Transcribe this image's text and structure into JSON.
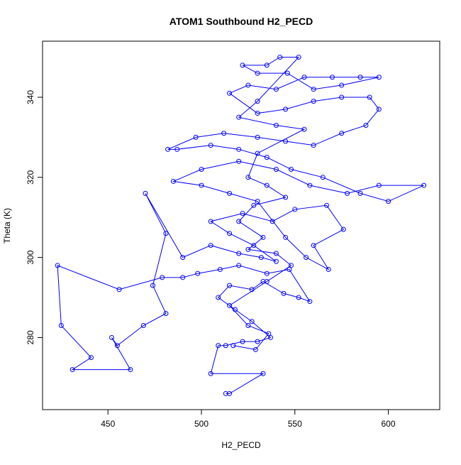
{
  "chart_data": {
    "type": "line",
    "markers": true,
    "title": "ATOM1 Southbound H2_PECD",
    "x_label": "H2_PECD",
    "y_label": "Theta (K)",
    "color": "#0000ff",
    "grid": false,
    "xlim": [
      415,
      627.5
    ],
    "ylim": [
      262,
      354
    ],
    "xticks": [
      450,
      500,
      550,
      600
    ],
    "yticks": [
      280,
      300,
      320,
      340
    ],
    "x": [
      513,
      515,
      533,
      505,
      509,
      513,
      522,
      530,
      537,
      527,
      518,
      509,
      515,
      527,
      533,
      544,
      552,
      558,
      547,
      535,
      520,
      510,
      498,
      490,
      479,
      456,
      423,
      425,
      441,
      431,
      462,
      452,
      455,
      469,
      481,
      474,
      481,
      470,
      490,
      505,
      520,
      532,
      540,
      528,
      515,
      505,
      522,
      538,
      550,
      567,
      576,
      560,
      568,
      556,
      545,
      530,
      515,
      500,
      485,
      500,
      520,
      540,
      558,
      578,
      595,
      619,
      600,
      585,
      565,
      548,
      535,
      520,
      505,
      487,
      482,
      497,
      512,
      530,
      545,
      560,
      575,
      588,
      595,
      590,
      575,
      560,
      545,
      530,
      515,
      525,
      540,
      555,
      570,
      585,
      595,
      575,
      560,
      546,
      530,
      522,
      535,
      542,
      552,
      530,
      520,
      540,
      555,
      530,
      525,
      535,
      545,
      528,
      520,
      533,
      525,
      540,
      548,
      535,
      515,
      525,
      536,
      529,
      517
    ],
    "values": [
      266,
      266,
      271,
      271,
      278,
      278,
      279,
      279,
      280,
      284,
      287,
      290,
      293,
      292,
      294,
      291,
      290,
      289,
      297,
      296,
      298,
      297,
      296,
      295,
      295,
      292,
      298,
      283,
      275,
      272,
      272,
      280,
      278,
      283,
      286,
      293,
      306,
      316,
      300,
      303,
      301,
      300,
      299,
      303,
      306,
      309,
      311,
      309,
      312,
      313,
      307,
      303,
      297,
      300,
      305,
      314,
      316,
      318,
      319,
      322,
      324,
      322,
      318,
      316,
      318,
      318,
      314,
      316,
      320,
      322,
      325,
      327,
      328,
      327,
      327,
      330,
      331,
      330,
      329,
      328,
      331,
      333,
      337,
      340,
      340,
      339,
      337,
      336,
      341,
      343,
      342,
      345,
      345,
      345,
      345,
      343,
      342,
      346,
      346,
      348,
      348,
      350,
      350,
      339,
      335,
      333,
      332,
      326,
      320,
      318,
      315,
      313,
      309,
      305,
      302,
      301,
      298,
      294,
      288,
      283,
      281,
      277,
      278
    ]
  }
}
